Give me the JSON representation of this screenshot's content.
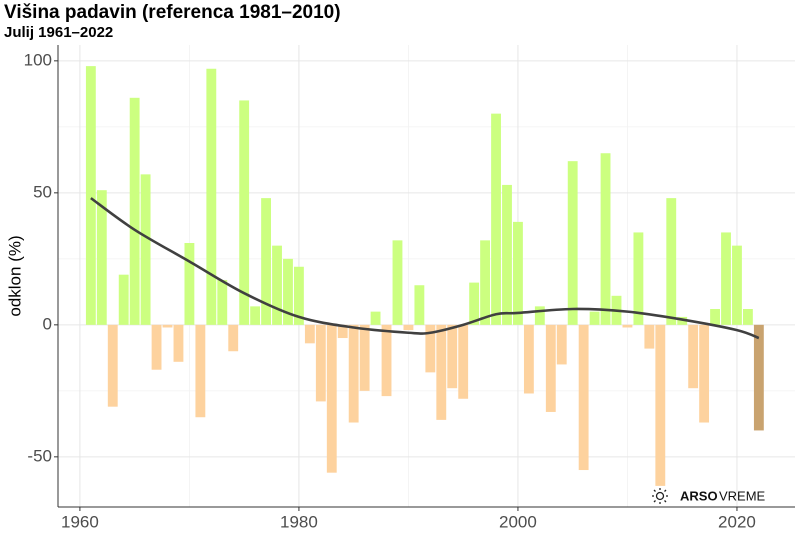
{
  "chart_data": {
    "type": "bar",
    "title": "Višina padavin (referenca 1981–2010)",
    "subtitle": "Julij 1961–2022",
    "y_label": "odklon (%)",
    "logo": {
      "bold": "ARSO",
      "light": "VREME"
    },
    "x": [
      1961,
      1962,
      1963,
      1964,
      1965,
      1966,
      1967,
      1968,
      1969,
      1970,
      1971,
      1972,
      1973,
      1974,
      1975,
      1976,
      1977,
      1978,
      1979,
      1980,
      1981,
      1982,
      1983,
      1984,
      1985,
      1986,
      1987,
      1988,
      1989,
      1990,
      1991,
      1992,
      1993,
      1994,
      1995,
      1996,
      1997,
      1998,
      1999,
      2000,
      2001,
      2002,
      2003,
      2004,
      2005,
      2006,
      2007,
      2008,
      2009,
      2010,
      2011,
      2012,
      2013,
      2014,
      2015,
      2016,
      2017,
      2018,
      2019,
      2020,
      2021,
      2022
    ],
    "values": [
      98,
      51,
      -31,
      19,
      86,
      57,
      -17,
      -1,
      -14,
      31,
      -35,
      97,
      17,
      -10,
      85,
      7,
      48,
      30,
      25,
      22,
      -7,
      -29,
      -56,
      -5,
      -37,
      -25,
      5,
      -27,
      32,
      -2,
      15,
      -18,
      -36,
      -24,
      -28,
      16,
      32,
      80,
      53,
      39,
      -26,
      7,
      -33,
      -15,
      62,
      -55,
      5,
      65,
      11,
      -1,
      35,
      -9,
      -61,
      48,
      3,
      -24,
      -37,
      6,
      35,
      30,
      6,
      -40
    ],
    "positive_color": "#ccff80",
    "negative_color": "#fdd29e",
    "highlight_x": 2022,
    "highlight_color": "#c9a36f",
    "trend": {
      "color": "#404040",
      "x": [
        1961,
        1965,
        1970,
        1975,
        1980,
        1985,
        1990,
        1992,
        1995,
        1998,
        2000,
        2005,
        2010,
        2015,
        2020,
        2022
      ],
      "values": [
        48,
        36,
        24,
        12,
        3,
        -1,
        -3,
        -3,
        0,
        4,
        4.5,
        6,
        5,
        2,
        -2,
        -5
      ]
    },
    "xlim": [
      1958,
      2025.3
    ],
    "xticks": [
      1960,
      1980,
      2000,
      2020
    ],
    "xminor": [
      1970,
      1990,
      2010
    ],
    "ylim": [
      -69,
      106
    ],
    "yticks": [
      -50,
      0,
      50,
      100
    ],
    "yminor": [
      -25,
      25,
      75
    ],
    "grid": true
  }
}
